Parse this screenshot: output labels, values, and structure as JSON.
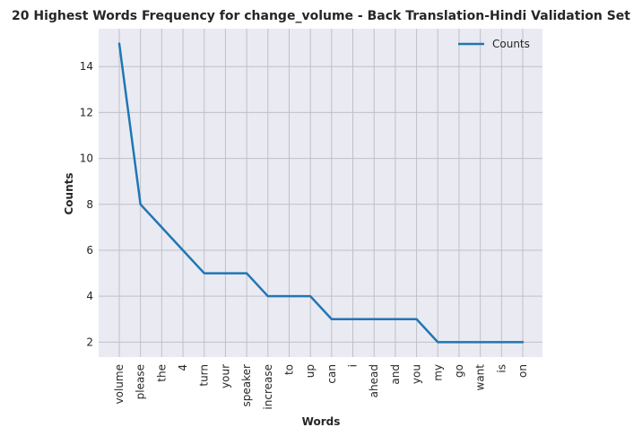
{
  "chart_data": {
    "type": "line",
    "title": "20 Highest Words Frequency for change_volume - Back Translation-Hindi Validation Set",
    "xlabel": "Words",
    "ylabel": "Counts",
    "categories": [
      "volume",
      "please",
      "the",
      "4",
      "turn",
      "your",
      "speaker",
      "increase",
      "to",
      "up",
      "can",
      "i",
      "ahead",
      "and",
      "you",
      "my",
      "go",
      "want",
      "is",
      "on"
    ],
    "series": [
      {
        "name": "Counts",
        "values": [
          15,
          8,
          7,
          6,
          5,
          5,
          5,
          4,
          4,
          4,
          3,
          3,
          3,
          3,
          3,
          2,
          2,
          2,
          2,
          2
        ]
      }
    ],
    "ylim": [
      1.35,
      15.65
    ],
    "yticks": [
      2,
      4,
      6,
      8,
      10,
      12,
      14
    ],
    "grid": true,
    "legend_position": "top-right",
    "colors": {
      "line": "#1f77b4",
      "plot_bg": "#eaeaf2",
      "grid": "#c0c0c8",
      "text": "#262626"
    }
  }
}
